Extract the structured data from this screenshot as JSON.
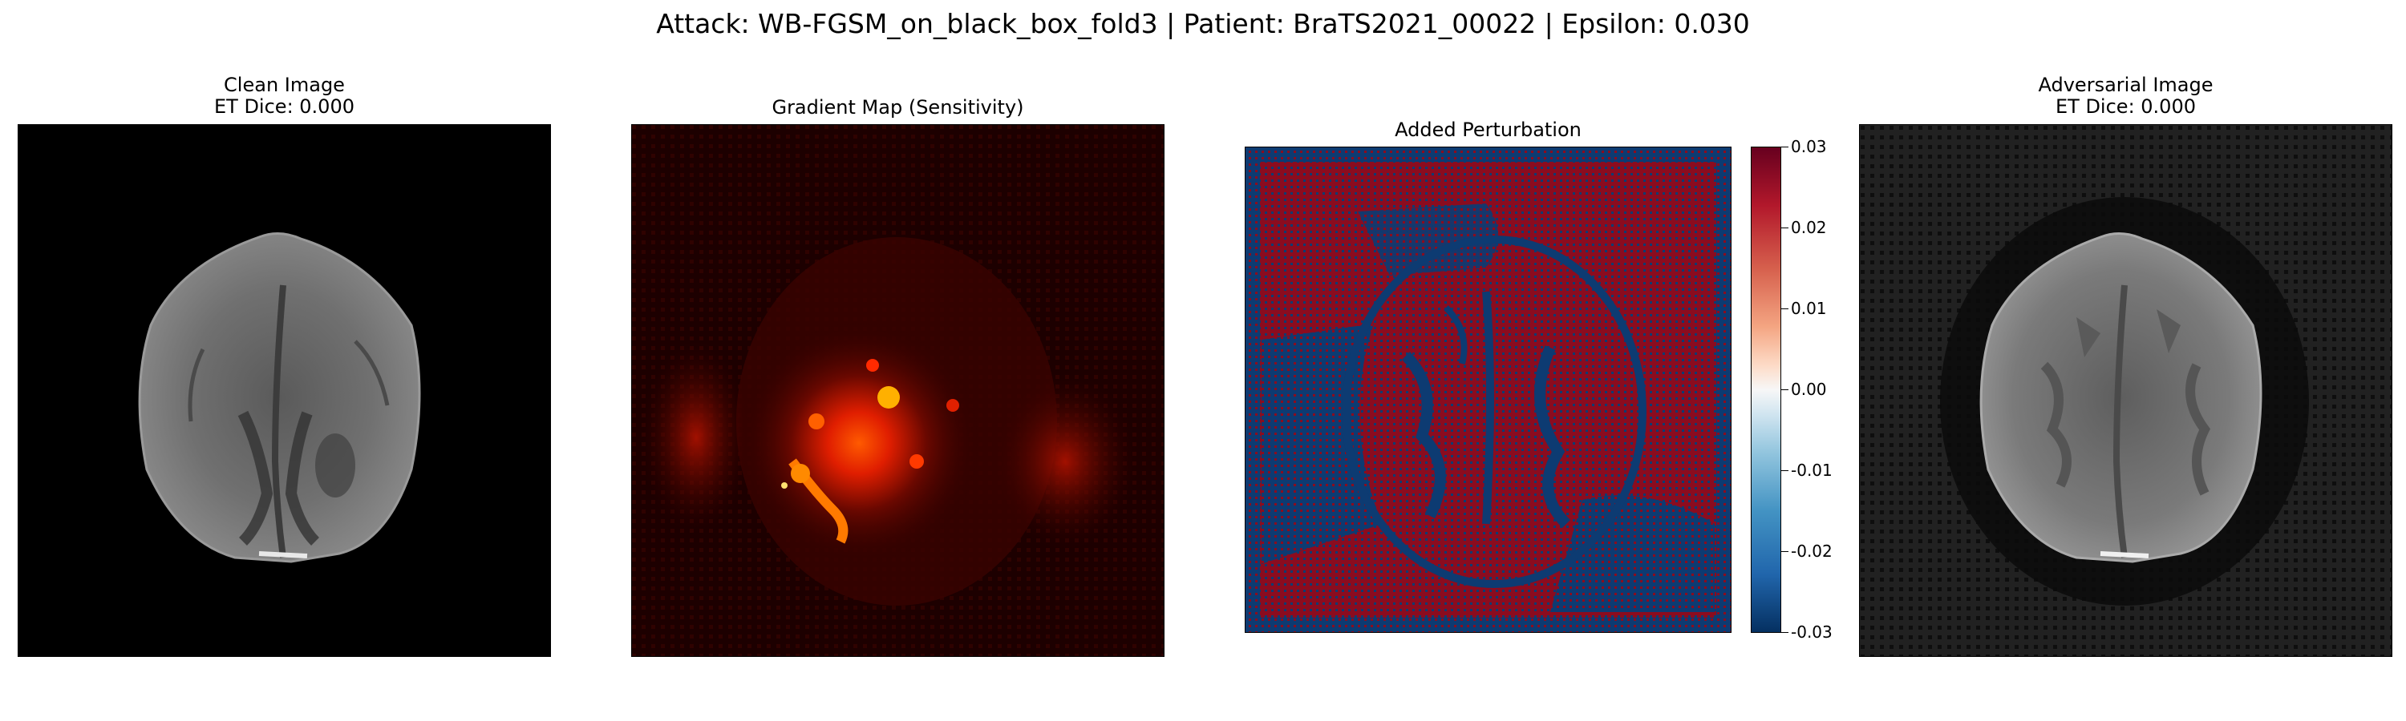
{
  "figure": {
    "suptitle": "Attack: WB-FGSM_on_black_box_fold3 | Patient: BraTS2021_00022 | Epsilon: 0.030"
  },
  "panels": [
    {
      "name": "clean-image",
      "title_line1": "Clean Image",
      "title_line2": "ET Dice: 0.000"
    },
    {
      "name": "gradient-map",
      "title_line1": "Gradient Map (Sensitivity)"
    },
    {
      "name": "added-perturbation",
      "title_line1": "Added Perturbation"
    },
    {
      "name": "adversarial-image",
      "title_line1": "Adversarial Image",
      "title_line2": "ET Dice: 0.000"
    }
  ],
  "colorbar": {
    "colormap": "RdBu_r",
    "min": -0.03,
    "max": 0.03,
    "ticks": [
      "0.03",
      "0.02",
      "0.01",
      "0.00",
      "-0.01",
      "-0.02",
      "-0.03"
    ]
  },
  "colors": {
    "perturbation_positive": "#8b0c1f",
    "perturbation_negative": "#0d3b72",
    "gradient_hot": "#ff2a00"
  }
}
